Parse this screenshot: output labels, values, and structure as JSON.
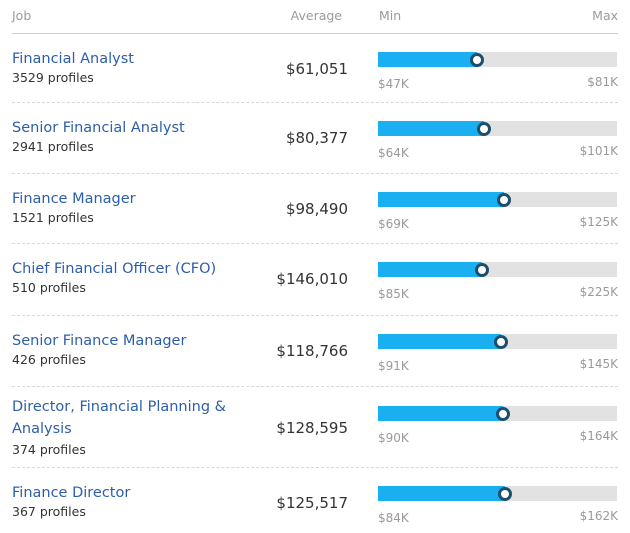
{
  "header": {
    "job": "Job",
    "average": "Average",
    "min": "Min",
    "max": "Max"
  },
  "colors": {
    "title": "#2d5fa8",
    "bar_fill": "#1aaff0",
    "bar_track": "#e2e2e2",
    "marker_ring": "#1b4f6d"
  },
  "rows": [
    {
      "title": "Financial Analyst",
      "profiles": "3529 profiles",
      "average": "$61,051",
      "min": "$47K",
      "max": "$81K",
      "average_fraction": 0.413
    },
    {
      "title": "Senior Financial Analyst",
      "profiles": "2941 profiles",
      "average": "$80,377",
      "min": "$64K",
      "max": "$101K",
      "average_fraction": 0.443
    },
    {
      "title": "Finance Manager",
      "profiles": "1521 profiles",
      "average": "$98,490",
      "min": "$69K",
      "max": "$125K",
      "average_fraction": 0.527
    },
    {
      "title": "Chief Financial Officer (CFO)",
      "profiles": "510 profiles",
      "average": "$146,010",
      "min": "$85K",
      "max": "$225K",
      "average_fraction": 0.436
    },
    {
      "title": "Senior Finance Manager",
      "profiles": "426 profiles",
      "average": "$118,766",
      "min": "$91K",
      "max": "$145K",
      "average_fraction": 0.514
    },
    {
      "title": "Director, Financial Planning & Analysis",
      "profiles": "374 profiles",
      "average": "$128,595",
      "min": "$90K",
      "max": "$164K",
      "average_fraction": 0.522
    },
    {
      "title": "Finance Director",
      "profiles": "367 profiles",
      "average": "$125,517",
      "min": "$84K",
      "max": "$162K",
      "average_fraction": 0.532
    }
  ]
}
